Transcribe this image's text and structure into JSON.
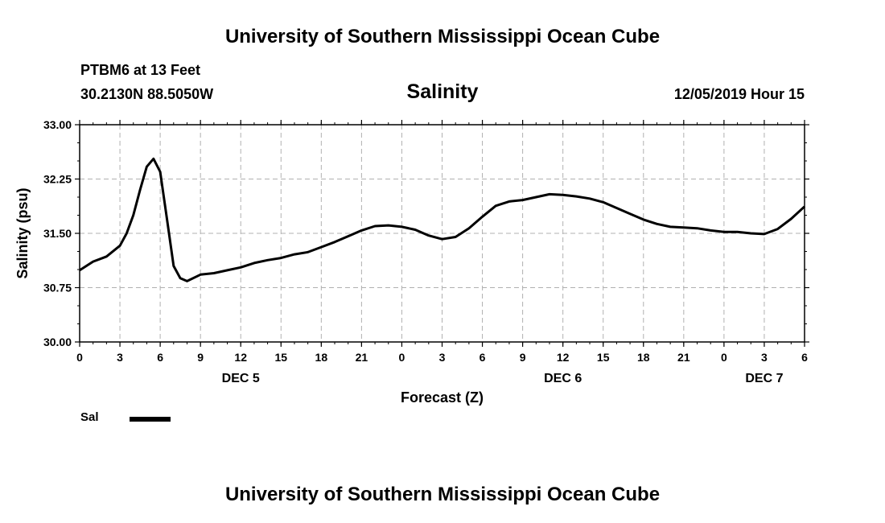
{
  "header": {
    "title_top": "University of Southern Mississippi Ocean Cube",
    "title_bottom": "University of Southern Mississippi Ocean Cube",
    "station": "PTBM6 at 13 Feet",
    "coords": "30.2130N 88.5050W",
    "chart_title": "Salinity",
    "datetime": "12/05/2019 Hour 15"
  },
  "legend": {
    "label": "Sal",
    "color": "#000000"
  },
  "chart_data": {
    "type": "line",
    "title": "Salinity",
    "xlabel": "Forecast (Z)",
    "ylabel": "Salinity (psu)",
    "ylim": [
      30.0,
      33.0
    ],
    "yticks": [
      "30.00",
      "30.75",
      "31.50",
      "32.25",
      "33.00"
    ],
    "xlim": [
      0,
      54
    ],
    "xtick_labels": [
      "0",
      "3",
      "6",
      "9",
      "12",
      "15",
      "18",
      "21",
      "0",
      "3",
      "6",
      "9",
      "12",
      "15",
      "18",
      "21",
      "0",
      "3",
      "6"
    ],
    "day_labels": [
      {
        "label": "DEC 5",
        "x": 12
      },
      {
        "label": "DEC 6",
        "x": 36
      },
      {
        "label": "DEC 7",
        "x": 51
      }
    ],
    "grid": true,
    "series": [
      {
        "name": "Sal",
        "x": [
          0,
          1,
          2,
          3,
          3.5,
          4,
          4.5,
          5,
          5.5,
          6,
          6.5,
          7,
          7.5,
          8,
          9,
          10,
          11,
          12,
          13,
          14,
          15,
          16,
          17,
          18,
          19,
          20,
          21,
          22,
          23,
          24,
          25,
          26,
          27,
          28,
          29,
          30,
          31,
          32,
          33,
          34,
          35,
          36,
          37,
          38,
          39,
          40,
          41,
          42,
          43,
          44,
          45,
          46,
          47,
          48,
          49,
          50,
          51,
          52,
          53,
          54
        ],
        "values": [
          30.99,
          31.11,
          31.18,
          31.33,
          31.5,
          31.75,
          32.1,
          32.42,
          32.53,
          32.35,
          31.7,
          31.05,
          30.88,
          30.84,
          30.93,
          30.95,
          30.99,
          31.03,
          31.09,
          31.13,
          31.16,
          31.21,
          31.24,
          31.31,
          31.38,
          31.46,
          31.54,
          31.6,
          31.61,
          31.59,
          31.55,
          31.47,
          31.42,
          31.45,
          31.57,
          31.73,
          31.88,
          31.94,
          31.96,
          32.0,
          32.04,
          32.03,
          32.01,
          31.98,
          31.93,
          31.85,
          31.77,
          31.69,
          31.63,
          31.59,
          31.58,
          31.57,
          31.54,
          31.52,
          31.52,
          31.5,
          31.49,
          31.56,
          31.7,
          31.87
        ]
      }
    ]
  }
}
